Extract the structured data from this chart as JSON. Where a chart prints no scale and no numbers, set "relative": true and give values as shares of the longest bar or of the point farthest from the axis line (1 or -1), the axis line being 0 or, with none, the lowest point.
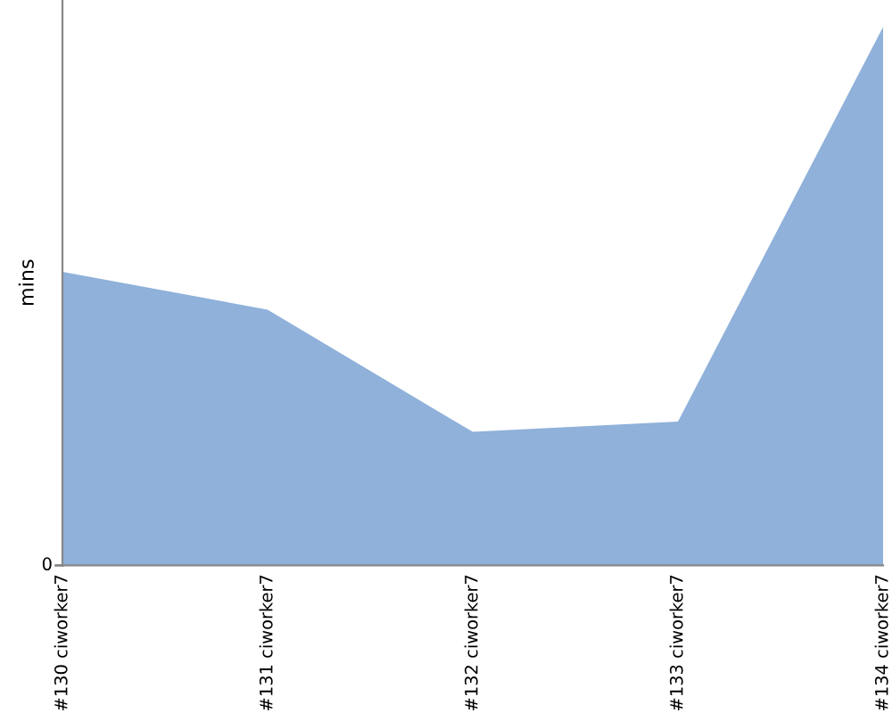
{
  "chart_data": {
    "type": "area",
    "ylabel": "mins",
    "relative": true,
    "categories": [
      "#130 ciworker7",
      "#131 ciworker7",
      "#132 ciworker7",
      "#133 ciworker7",
      "#134 ciworker7"
    ],
    "series": [
      {
        "color": "#8fb1da",
        "values": [
          0.545,
          0.475,
          0.248,
          0.267,
          1
        ]
      }
    ],
    "annotations": [
      "0"
    ],
    "grid": false,
    "legend": false
  }
}
